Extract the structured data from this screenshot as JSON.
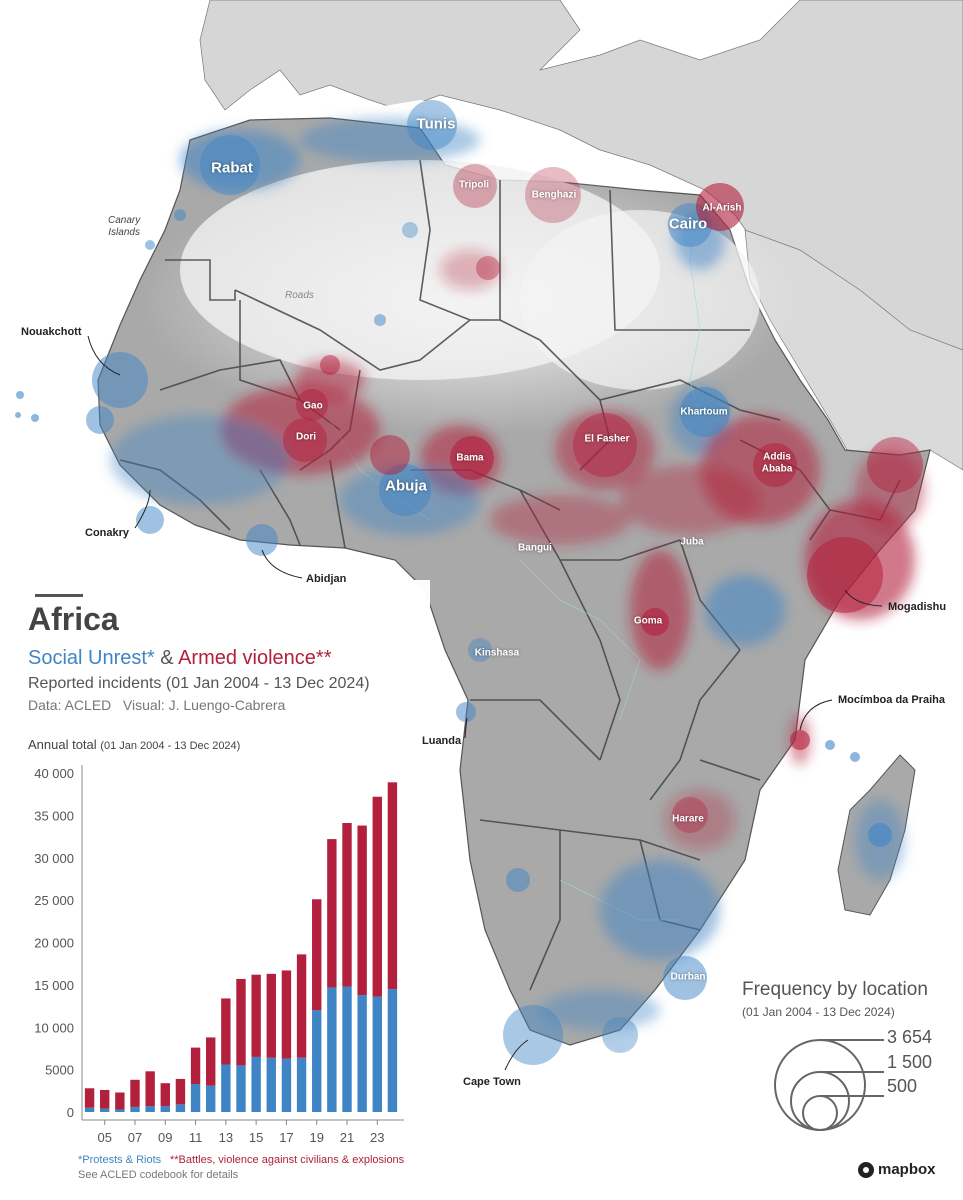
{
  "title": "Africa",
  "subtitle_blue": "Social Unrest*",
  "subtitle_amp": " & ",
  "subtitle_red": "Armed violence**",
  "reported": "Reported incidents (01 Jan 2004 - 13 Dec 2024)",
  "credits": "Data: ACLED   Visual: J. Luengo-Cabrera",
  "annual_label": "Annual total",
  "annual_range": "(01 Jan 2004 - 13 Dec 2024)",
  "footnote_blue": "*Protests & Riots",
  "footnote_red": "**Battles, violence against civilians & explosions",
  "footnote_see": "See ACLED codebook for details",
  "legend": {
    "title": "Frequency by location",
    "range": "(01 Jan 2004 - 13 Dec 2024)",
    "values": [
      "3 654",
      "1 500",
      "500"
    ]
  },
  "attribution": "mapbox",
  "colors": {
    "blue": "#3f85c6",
    "red": "#b3203d"
  },
  "map_labels": {
    "canary": "Canary",
    "islands": "Islands",
    "roads": "Roads",
    "rabat": "Rabat",
    "tunis": "Tunis",
    "tripoli": "Tripoli",
    "benghazi": "Benghazi",
    "cairo": "Cairo",
    "al_arish": "Al-Arish",
    "gao": "Gao",
    "dori": "Dori",
    "bama": "Bama",
    "el_fasher": "El Fasher",
    "khartoum": "Khartoum",
    "abuja": "Abuja",
    "addis": "Addis",
    "ababa": "Ababa",
    "bangui": "Bangui",
    "juba": "Juba",
    "goma": "Goma",
    "kinshasa": "Kinshasa",
    "harare": "Harare",
    "durban": "Durban"
  },
  "callouts": {
    "nouakchott": "Nouakchott",
    "conakry": "Conakry",
    "abidjan": "Abidjan",
    "mogadishu": "Mogadishu",
    "mocimboa": "Mocímboa da Praiha",
    "luanda": "Luanda",
    "cape_town": "Cape Town"
  },
  "chart_data": {
    "type": "bar",
    "stacked": true,
    "categories": [
      "04",
      "05",
      "06",
      "07",
      "08",
      "09",
      "10",
      "11",
      "12",
      "13",
      "14",
      "15",
      "16",
      "17",
      "18",
      "19",
      "20",
      "21",
      "22",
      "23",
      "24"
    ],
    "xtick_labels": [
      "05",
      "07",
      "09",
      "11",
      "13",
      "15",
      "17",
      "19",
      "21",
      "23"
    ],
    "series": [
      {
        "name": "*Protests & Riots",
        "color": "#3f85c6",
        "values": [
          500,
          400,
          300,
          600,
          700,
          700,
          900,
          3300,
          3100,
          5600,
          5500,
          6500,
          6400,
          6300,
          6400,
          12000,
          14700,
          14800,
          13800,
          13600,
          14500
        ]
      },
      {
        "name": "**Battles, violence against civilians & explosions",
        "color": "#b3203d",
        "values": [
          2300,
          2200,
          2000,
          3200,
          4100,
          2700,
          3000,
          4300,
          5700,
          7800,
          10200,
          9700,
          9900,
          10400,
          12200,
          13100,
          17500,
          19300,
          20000,
          23600,
          24400
        ]
      }
    ],
    "ylim": [
      0,
      40000
    ],
    "yticks": [
      "0",
      "5000",
      "10 000",
      "15 000",
      "20 000",
      "25 000",
      "30 000",
      "35 000",
      "40 000"
    ],
    "grid": false,
    "legend": "bottom"
  }
}
